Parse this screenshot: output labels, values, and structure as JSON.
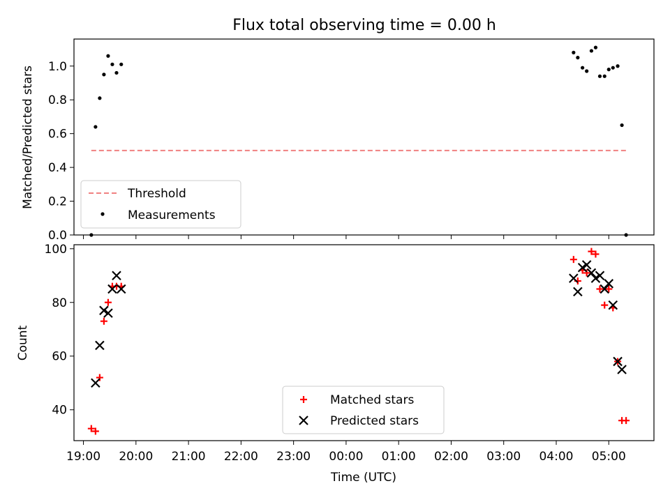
{
  "chart_data": [
    {
      "type": "scatter",
      "title": "Flux total observing time = 0.00 h",
      "xlabel": "",
      "ylabel": "Matched/Predicted stars",
      "ylim": [
        0,
        1.16
      ],
      "yticks": [
        "0.0",
        "0.2",
        "0.4",
        "0.6",
        "0.8",
        "1.0"
      ],
      "legend_position": "lower-left",
      "threshold": {
        "name": "Threshold",
        "value": 0.5,
        "x_range": [
          19.15,
          5.33
        ],
        "color": "#f08080",
        "style": "dashed"
      },
      "series": [
        {
          "name": "Measurements",
          "color": "#000000",
          "marker": "dot",
          "x": [
            19.15,
            19.23,
            19.31,
            19.39,
            19.47,
            19.55,
            19.63,
            19.72,
            4.33,
            4.41,
            4.5,
            4.58,
            4.67,
            4.75,
            4.83,
            4.92,
            5.0,
            5.08,
            5.17,
            5.25,
            5.33
          ],
          "y": [
            0.0,
            0.64,
            0.81,
            0.95,
            1.06,
            1.01,
            0.96,
            1.01,
            1.08,
            1.05,
            0.99,
            0.97,
            1.09,
            1.11,
            0.94,
            0.94,
            0.98,
            0.99,
            1.0,
            0.65,
            0.0
          ]
        }
      ]
    },
    {
      "type": "scatter",
      "title": "",
      "xlabel": "Time (UTC)",
      "ylabel": "Count",
      "ylim": [
        28.5,
        101.5
      ],
      "yticks": [
        "40",
        "60",
        "80",
        "100"
      ],
      "xlim": [
        18.82,
        5.86
      ],
      "xticks": [
        "19:00",
        "20:00",
        "21:00",
        "22:00",
        "23:00",
        "00:00",
        "01:00",
        "02:00",
        "03:00",
        "04:00",
        "05:00"
      ],
      "legend_position": "lower-center",
      "series": [
        {
          "name": "Matched stars",
          "color": "#ff0000",
          "marker": "plus",
          "x": [
            19.15,
            19.23,
            19.31,
            19.39,
            19.47,
            19.55,
            19.63,
            19.72,
            4.33,
            4.41,
            4.5,
            4.58,
            4.67,
            4.75,
            4.83,
            4.92,
            5.0,
            5.08,
            5.17,
            5.25,
            5.33
          ],
          "y": [
            33,
            32,
            52,
            73,
            80,
            86,
            86,
            86,
            96,
            88,
            92,
            91,
            99,
            98,
            85,
            79,
            85,
            78,
            58,
            36,
            36
          ]
        },
        {
          "name": "Predicted stars",
          "color": "#000000",
          "marker": "x",
          "x": [
            19.23,
            19.31,
            19.39,
            19.47,
            19.55,
            19.63,
            19.72,
            4.33,
            4.41,
            4.5,
            4.58,
            4.67,
            4.75,
            4.83,
            4.92,
            5.0,
            5.08,
            5.17,
            5.25
          ],
          "y": [
            50,
            64,
            77,
            76,
            85,
            90,
            85,
            89,
            84,
            93,
            94,
            91,
            89,
            90,
            85,
            87,
            79,
            58,
            55
          ]
        }
      ]
    }
  ]
}
